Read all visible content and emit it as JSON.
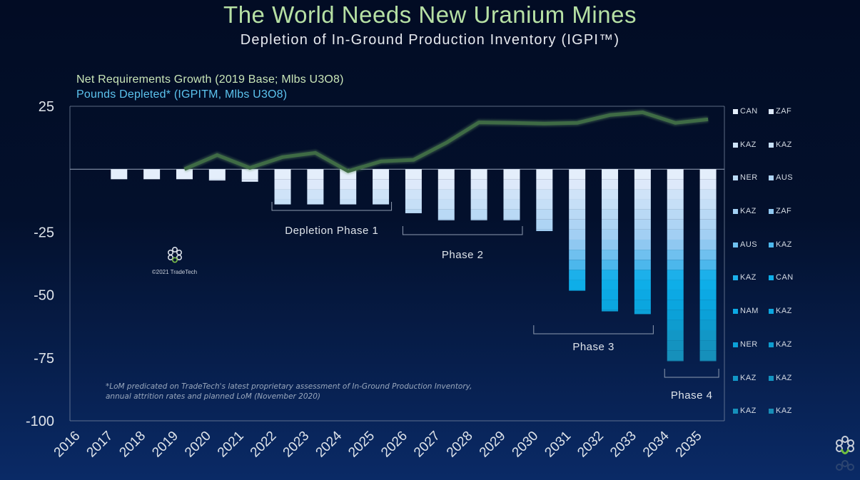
{
  "header": {
    "title": "The World Needs New Uranium Mines",
    "subtitle": "Depletion of In-Ground Production Inventory (IGPI™)"
  },
  "series_labels": {
    "line": "Net Requirements Growth (2019 Base; Mlbs U3O8)",
    "bars": "Pounds Depleted* (IGPITM, Mlbs U3O8)"
  },
  "watermark": {
    "text": "©2021 TradeTech",
    "icon": "tradetech-logo-icon"
  },
  "footnote": {
    "line1": "*LoM predicated on TradeTech's latest proprietary assessment of In-Ground Production Inventory,",
    "line2": "annual attrition rates and planned LoM (November 2020)"
  },
  "colors": {
    "line": "#3f6b45",
    "axis": "#8190a8",
    "title": "#b6e0a4",
    "bars_label": "#5cc3ee"
  },
  "chart_data": {
    "type": "bar",
    "title": "The World Needs New Uranium Mines",
    "subtitle": "Depletion of In-Ground Production Inventory (IGPI™)",
    "xlabel": "",
    "ylabel": "",
    "ylim": [
      -100,
      25
    ],
    "yticks": [
      25,
      -25,
      -50,
      -75,
      -100
    ],
    "grid": false,
    "legend_position": "right",
    "categories": [
      "2016",
      "2017",
      "2018",
      "2019",
      "2020",
      "2021",
      "2022",
      "2023",
      "2024",
      "2025",
      "2026",
      "2027",
      "2028",
      "2029",
      "2030",
      "2031",
      "2032",
      "2033",
      "2034",
      "2035"
    ],
    "series": [
      {
        "name": "Pounds Depleted* (IGPITM, Mlbs U3O8)",
        "type": "stacked-bar",
        "values": [
          null,
          -4,
          -4,
          -4,
          -4.5,
          -5,
          -14,
          -14,
          -14,
          -14,
          -17.5,
          -20.3,
          -20.3,
          -20.3,
          -24.6,
          -48.3,
          -56.5,
          -57.6,
          -76.3,
          -76.3
        ]
      },
      {
        "name": "Net Requirements Growth (2019 Base; Mlbs U3O8)",
        "type": "line",
        "values": [
          null,
          null,
          null,
          0,
          5.6,
          0.5,
          4.8,
          6.5,
          -0.8,
          3.1,
          3.7,
          10.5,
          18.6,
          18.4,
          18.1,
          18.4,
          21.5,
          22.6,
          18.4,
          19.8
        ]
      }
    ],
    "stack_legend": [
      {
        "label": "CAN",
        "color": "#e4eefb"
      },
      {
        "label": "ZAF",
        "color": "#dde9fa"
      },
      {
        "label": "KAZ",
        "color": "#cfe3f8"
      },
      {
        "label": "KAZ",
        "color": "#c6dff7"
      },
      {
        "label": "NER",
        "color": "#b9d9f5"
      },
      {
        "label": "AUS",
        "color": "#aed4f4"
      },
      {
        "label": "KAZ",
        "color": "#a2cff3"
      },
      {
        "label": "ZAF",
        "color": "#8fc8f1"
      },
      {
        "label": "AUS",
        "color": "#6fc0ef"
      },
      {
        "label": "KAZ",
        "color": "#4cb7ec"
      },
      {
        "label": "KAZ",
        "color": "#1cb0ea"
      },
      {
        "label": "CAN",
        "color": "#0eaee8"
      },
      {
        "label": "NAM",
        "color": "#0ca9e4"
      },
      {
        "label": "KAZ",
        "color": "#0ba6df"
      },
      {
        "label": "NER",
        "color": "#0ba1d8"
      },
      {
        "label": "KAZ",
        "color": "#0e9ccf"
      },
      {
        "label": "KAZ",
        "color": "#1297c6"
      },
      {
        "label": "KAZ",
        "color": "#1493c0"
      },
      {
        "label": "KAZ",
        "color": "#1690bb"
      },
      {
        "label": "KAZ",
        "color": "#178db6"
      }
    ],
    "annotations": [
      {
        "label": "Depletion Phase 1",
        "from": "2022",
        "to": "2025"
      },
      {
        "label": "Phase 2",
        "from": "2026",
        "to": "2029"
      },
      {
        "label": "Phase 3",
        "from": "2030",
        "to": "2033"
      },
      {
        "label": "Phase 4",
        "from": "2034",
        "to": "2035"
      }
    ]
  }
}
